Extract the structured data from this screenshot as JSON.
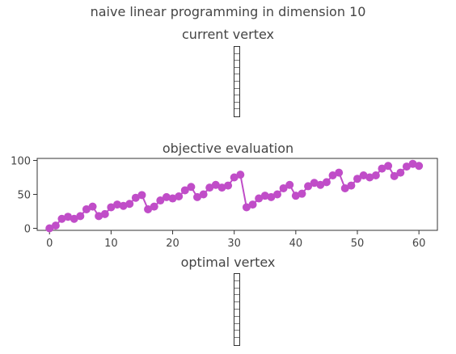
{
  "main_title": "naive linear programming in dimension 10",
  "current_vertex": {
    "title": "current vertex",
    "cells": 10,
    "bar_color": "#333333"
  },
  "optimal_vertex": {
    "title": "optimal vertex",
    "cells": 10,
    "bar_color": "#333333"
  },
  "chart_data": {
    "type": "line",
    "title": "objective evaluation",
    "xlabel": "",
    "ylabel": "",
    "xlim": [
      -2,
      63
    ],
    "ylim": [
      -3,
      103
    ],
    "xticks": [
      0,
      10,
      20,
      30,
      40,
      50,
      60
    ],
    "yticks": [
      0,
      50,
      100
    ],
    "grid": false,
    "series": [
      {
        "color": "#c04dc8",
        "marker": "circle",
        "x": [
          0,
          1,
          2,
          3,
          4,
          5,
          6,
          7,
          8,
          9,
          10,
          11,
          12,
          13,
          14,
          15,
          16,
          17,
          18,
          19,
          20,
          21,
          22,
          23,
          24,
          25,
          26,
          27,
          28,
          29,
          30,
          31,
          32,
          33,
          34,
          35,
          36,
          37,
          38,
          39,
          40,
          41,
          42,
          43,
          44,
          45,
          46,
          47,
          48,
          49,
          50,
          51,
          52,
          53,
          54,
          55,
          56,
          57,
          58,
          59,
          60
        ],
        "values": [
          0,
          4,
          14,
          17,
          14,
          18,
          28,
          32,
          18,
          21,
          31,
          35,
          33,
          36,
          45,
          49,
          28,
          32,
          41,
          46,
          44,
          47,
          56,
          61,
          46,
          50,
          60,
          64,
          60,
          63,
          75,
          79,
          31,
          35,
          44,
          48,
          46,
          50,
          59,
          64,
          48,
          51,
          62,
          67,
          64,
          68,
          78,
          82,
          59,
          63,
          73,
          78,
          75,
          78,
          88,
          92,
          77,
          82,
          91,
          95,
          92
        ]
      }
    ]
  }
}
